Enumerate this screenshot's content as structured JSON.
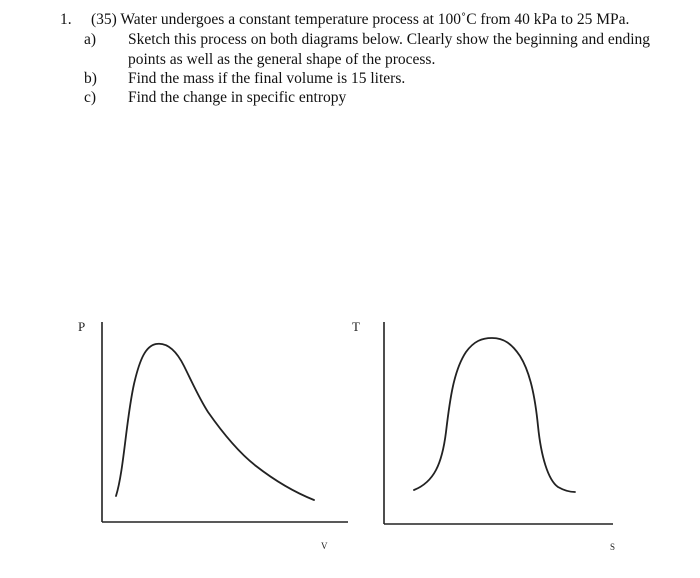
{
  "problem": {
    "number": "1.",
    "header": "(35) Water undergoes a constant temperature process at 100˚C from 40 kPa to 25 MPa.",
    "parts": [
      {
        "label": "a)",
        "lines": [
          "Sketch this process on both diagrams below. Clearly show the beginning and ending",
          "points as well as the general shape of the process."
        ]
      },
      {
        "label": "b)",
        "lines": [
          "Find the mass if the final volume is 15 liters."
        ]
      },
      {
        "label": "c)",
        "lines": [
          "Find the change in specific entropy"
        ]
      }
    ]
  },
  "diagrams": {
    "pv": {
      "y_label": "P",
      "x_label": "V"
    },
    "ts": {
      "y_label": "T",
      "x_label": "S"
    }
  },
  "colors": {
    "text": "#111111",
    "curve": "#222222",
    "background": "#ffffff"
  }
}
